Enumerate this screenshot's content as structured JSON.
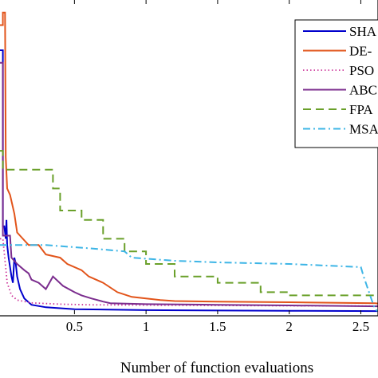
{
  "chart_data": {
    "type": "line",
    "xlabel": "Number of function evaluations",
    "ylabel": "",
    "xlim": [
      -0.02,
      2.62
    ],
    "ylim": [
      0,
      100
    ],
    "xticks": [
      {
        "value": 0.5,
        "label": "0.5"
      },
      {
        "value": 1,
        "label": "1"
      },
      {
        "value": 1.5,
        "label": "1.5"
      },
      {
        "value": 2,
        "label": "2"
      },
      {
        "value": 2.5,
        "label": "2.5"
      }
    ],
    "legend_position": "top-right",
    "series": [
      {
        "name": "SHA",
        "color": "#0000cc",
        "dash": "solid",
        "points": [
          [
            -0.02,
            84
          ],
          [
            0.0,
            84
          ],
          [
            0.0,
            28
          ],
          [
            0.01,
            28
          ],
          [
            0.02,
            24
          ],
          [
            0.025,
            30
          ],
          [
            0.03,
            22
          ],
          [
            0.04,
            18
          ],
          [
            0.05,
            15
          ],
          [
            0.06,
            12
          ],
          [
            0.07,
            10
          ],
          [
            0.08,
            18
          ],
          [
            0.09,
            16
          ],
          [
            0.1,
            12
          ],
          [
            0.12,
            8
          ],
          [
            0.15,
            5
          ],
          [
            0.2,
            3
          ],
          [
            0.3,
            2.2
          ],
          [
            0.5,
            1.6
          ],
          [
            1.0,
            1.3
          ],
          [
            2.0,
            1.1
          ],
          [
            2.62,
            1.0
          ]
        ]
      },
      {
        "name": "DE-",
        "color": "#e2541a",
        "dash": "solid",
        "points": [
          [
            -0.02,
            92
          ],
          [
            0.0,
            92
          ],
          [
            0.0,
            96
          ],
          [
            0.015,
            96
          ],
          [
            0.02,
            50
          ],
          [
            0.03,
            40
          ],
          [
            0.05,
            38
          ],
          [
            0.08,
            32
          ],
          [
            0.1,
            26
          ],
          [
            0.12,
            25
          ],
          [
            0.18,
            22
          ],
          [
            0.25,
            22
          ],
          [
            0.3,
            19
          ],
          [
            0.4,
            18
          ],
          [
            0.45,
            16
          ],
          [
            0.55,
            14
          ],
          [
            0.6,
            12
          ],
          [
            0.7,
            10
          ],
          [
            0.8,
            7
          ],
          [
            0.9,
            5.5
          ],
          [
            1.0,
            5
          ],
          [
            1.1,
            4.5
          ],
          [
            1.2,
            4.2
          ],
          [
            1.5,
            4
          ],
          [
            2.0,
            3.8
          ],
          [
            2.6,
            3.5
          ],
          [
            2.62,
            3.4
          ]
        ]
      },
      {
        "name": "PSO",
        "color": "#cc3399",
        "dash": "dots",
        "points": [
          [
            -0.02,
            24
          ],
          [
            0.0,
            24
          ],
          [
            0.03,
            10
          ],
          [
            0.06,
            6
          ],
          [
            0.1,
            4.5
          ],
          [
            0.2,
            3.6
          ],
          [
            0.4,
            3.2
          ],
          [
            0.6,
            3.0
          ],
          [
            1.0,
            2.9
          ],
          [
            1.5,
            2.8
          ],
          [
            2.0,
            2.7
          ],
          [
            2.62,
            2.6
          ]
        ]
      },
      {
        "name": "ABC",
        "color": "#7b2d8e",
        "dash": "solid",
        "points": [
          [
            -0.02,
            80
          ],
          [
            0.0,
            80
          ],
          [
            0.0,
            25
          ],
          [
            0.05,
            25
          ],
          [
            0.06,
            18
          ],
          [
            0.1,
            16
          ],
          [
            0.15,
            14
          ],
          [
            0.18,
            13
          ],
          [
            0.2,
            11
          ],
          [
            0.25,
            10
          ],
          [
            0.3,
            8
          ],
          [
            0.35,
            12
          ],
          [
            0.42,
            9
          ],
          [
            0.5,
            7
          ],
          [
            0.55,
            6
          ],
          [
            0.62,
            5
          ],
          [
            0.7,
            4
          ],
          [
            0.75,
            3.5
          ],
          [
            1.0,
            3.2
          ],
          [
            1.5,
            3.0
          ],
          [
            2.0,
            2.8
          ],
          [
            2.62,
            2.5
          ]
        ]
      },
      {
        "name": "FPA",
        "color": "#6aa02a",
        "dash": "dash",
        "points": [
          [
            -0.02,
            52
          ],
          [
            0.0,
            52
          ],
          [
            0.0,
            46
          ],
          [
            0.35,
            46
          ],
          [
            0.35,
            40
          ],
          [
            0.4,
            40
          ],
          [
            0.4,
            33
          ],
          [
            0.55,
            33
          ],
          [
            0.55,
            30
          ],
          [
            0.7,
            30
          ],
          [
            0.7,
            24
          ],
          [
            0.85,
            24
          ],
          [
            0.85,
            20
          ],
          [
            1.0,
            20
          ],
          [
            1.0,
            16
          ],
          [
            1.2,
            16
          ],
          [
            1.2,
            12
          ],
          [
            1.5,
            12
          ],
          [
            1.5,
            10
          ],
          [
            1.8,
            10
          ],
          [
            1.8,
            7
          ],
          [
            2.0,
            7
          ],
          [
            2.0,
            6
          ],
          [
            2.62,
            6
          ]
        ]
      },
      {
        "name": "MSA",
        "color": "#3db5e6",
        "dash": "dashdot",
        "points": [
          [
            -0.02,
            22
          ],
          [
            0.0,
            22
          ],
          [
            0.3,
            22
          ],
          [
            0.6,
            21
          ],
          [
            0.85,
            20
          ],
          [
            0.9,
            18
          ],
          [
            1.2,
            17
          ],
          [
            1.5,
            16.5
          ],
          [
            2.0,
            16
          ],
          [
            2.5,
            15
          ],
          [
            2.52,
            12
          ],
          [
            2.55,
            8
          ],
          [
            2.58,
            4
          ],
          [
            2.6,
            1.5
          ],
          [
            2.62,
            1
          ]
        ]
      }
    ]
  }
}
